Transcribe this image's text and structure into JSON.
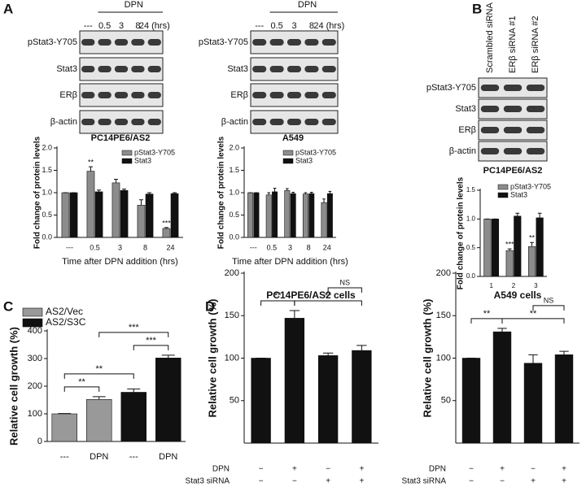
{
  "panel_labels": [
    "A",
    "B",
    "C",
    "D"
  ],
  "blots": [
    {
      "treatment": "DPN",
      "lanes": [
        "---",
        "0.5",
        "3",
        "8",
        "24 (hrs)"
      ],
      "rows": [
        "pStat3-Y705",
        "Stat3",
        "ERβ",
        "β-actin"
      ],
      "cell_line": "PC14PE6/AS2"
    },
    {
      "treatment": "DPN",
      "lanes": [
        "---",
        "0.5",
        "3",
        "8",
        "24 (hrs)"
      ],
      "rows": [
        "pStat3-Y705",
        "Stat3",
        "ERβ",
        "β-actin"
      ],
      "cell_line": "A549"
    },
    {
      "lanes": [
        "Scrambled siRNA",
        "ERβ siRNA #1",
        "ERβ siRNA #2"
      ],
      "rows": [
        "pStat3-Y705",
        "Stat3",
        "ERβ",
        "β-actin"
      ],
      "cell_line": "PC14PE6/AS2"
    }
  ],
  "chart_data": [
    {
      "type": "bar",
      "y_label": "Fold change of protein levels",
      "x_label": "Time after DPN addition (hrs)",
      "categories": [
        "---",
        "0.5",
        "3",
        "8",
        "24"
      ],
      "series": [
        {
          "name": "pStat3-Y705",
          "color": "#8c8c8c",
          "values": [
            1.0,
            1.48,
            1.22,
            0.72,
            0.2
          ],
          "errors": [
            0,
            0.1,
            0.08,
            0.12,
            0.02
          ],
          "annotations": [
            null,
            "**",
            null,
            null,
            "***"
          ]
        },
        {
          "name": "Stat3",
          "color": "#111111",
          "values": [
            1.0,
            1.02,
            1.05,
            0.97,
            0.98
          ],
          "errors": [
            0,
            0.04,
            0.03,
            0.03,
            0.02
          ]
        }
      ],
      "ylim": [
        0,
        2
      ],
      "yticks": [
        {
          "value": 0,
          "label": "0.0"
        },
        0.5,
        {
          "value": 1,
          "label": "1.0"
        },
        1.5,
        {
          "value": 2,
          "label": "2.0"
        }
      ]
    },
    {
      "type": "bar",
      "y_label": "Fold change of protein levels",
      "x_label": "Time after DPN addition (hrs)",
      "categories": [
        "---",
        "0.5",
        "3",
        "8",
        "24"
      ],
      "series": [
        {
          "name": "pStat3-Y705",
          "color": "#8c8c8c",
          "values": [
            1.0,
            0.95,
            1.05,
            0.97,
            0.78
          ],
          "errors": [
            0,
            0.05,
            0.04,
            0.03,
            0.08
          ]
        },
        {
          "name": "Stat3",
          "color": "#111111",
          "values": [
            1.0,
            1.02,
            0.98,
            0.98,
            0.98
          ],
          "errors": [
            0,
            0.08,
            0.03,
            0.03,
            0.05
          ]
        }
      ],
      "ylim": [
        0,
        2
      ],
      "yticks": [
        {
          "value": 0,
          "label": "0.0"
        },
        0.5,
        {
          "value": 1,
          "label": "1.0"
        },
        1.5,
        {
          "value": 2,
          "label": "2.0"
        }
      ]
    },
    {
      "type": "bar",
      "y_label": "Fold change of protein levels",
      "categories": [
        "1",
        "2",
        "3"
      ],
      "series": [
        {
          "name": "pStat3-Y705",
          "color": "#8c8c8c",
          "values": [
            1.0,
            0.45,
            0.52
          ],
          "errors": [
            0,
            0.03,
            0.07
          ],
          "annotations": [
            null,
            "***",
            "**"
          ]
        },
        {
          "name": "Stat3",
          "color": "#111111",
          "values": [
            1.0,
            1.05,
            1.02
          ],
          "errors": [
            0,
            0.05,
            0.08
          ]
        }
      ],
      "ylim": [
        0,
        1.5
      ],
      "yticks": [
        {
          "value": 0,
          "label": "0.0"
        },
        0.5,
        {
          "value": 1,
          "label": "1.0"
        },
        1.5
      ]
    },
    {
      "type": "bar",
      "y_label": "Relative cell growth (%)",
      "categories": [
        "---",
        "DPN",
        "---",
        "DPN"
      ],
      "series": [
        {
          "name": "AS2/Vec",
          "color": "#999999",
          "values": [
            100,
            152,
            null,
            null
          ],
          "errors": [
            1,
            10,
            null,
            null
          ]
        },
        {
          "name": "AS2/S3C",
          "color": "#111111",
          "values": [
            null,
            null,
            178,
            302
          ],
          "errors": [
            null,
            null,
            12,
            10
          ]
        }
      ],
      "comparisons": [
        {
          "label": "**",
          "pair": [
            0,
            1
          ]
        },
        {
          "label": "***",
          "pair": [
            2,
            3
          ]
        },
        {
          "label": "**",
          "pair": [
            0,
            2
          ]
        },
        {
          "label": "***",
          "pair": [
            1,
            3
          ]
        }
      ],
      "ylim": [
        0,
        400
      ],
      "yticks": [
        0,
        100,
        200,
        300,
        400
      ]
    },
    {
      "type": "bar",
      "title": "PC14PE6/AS2 cells",
      "y_label": "Relative cell growth (%)",
      "values": [
        100,
        147,
        103,
        109
      ],
      "errors": [
        0,
        9,
        3,
        6
      ],
      "color": "#111111",
      "rows": [
        {
          "label": "DPN",
          "values": [
            "−",
            "+",
            "−",
            "+"
          ]
        },
        {
          "label": "Stat3 siRNA",
          "values": [
            "−",
            "−",
            "+",
            "+"
          ]
        }
      ],
      "comparisons": [
        {
          "label": "**",
          "pair": [
            0,
            1
          ]
        },
        {
          "label": "**",
          "pair": [
            1,
            3
          ]
        },
        {
          "label": "NS",
          "pair": [
            2,
            3
          ]
        }
      ],
      "ylim": [
        0,
        200
      ],
      "yticks": [
        50,
        100,
        150,
        200
      ]
    },
    {
      "type": "bar",
      "title": "A549 cells",
      "y_label": "Relative cell growth (%)",
      "values": [
        100,
        131,
        94,
        104
      ],
      "errors": [
        0,
        4,
        10,
        4
      ],
      "color": "#111111",
      "rows": [
        {
          "label": "DPN",
          "values": [
            "−",
            "+",
            "−",
            "+"
          ]
        },
        {
          "label": "Stat3 siRNA",
          "values": [
            "−",
            "−",
            "+",
            "+"
          ]
        }
      ],
      "comparisons": [
        {
          "label": "**",
          "pair": [
            0,
            1
          ]
        },
        {
          "label": "**",
          "pair": [
            1,
            3
          ]
        },
        {
          "label": "NS",
          "pair": [
            2,
            3
          ]
        }
      ],
      "ylim": [
        0,
        200
      ],
      "yticks": [
        50,
        100,
        150,
        200
      ]
    }
  ]
}
